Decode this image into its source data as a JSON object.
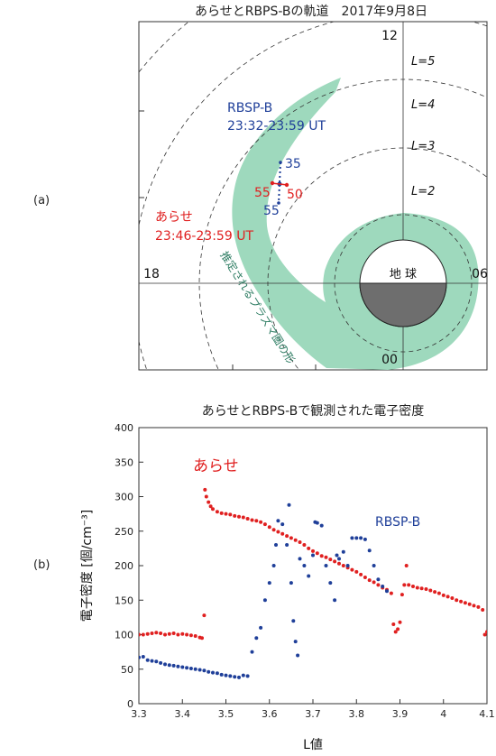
{
  "figure": {
    "panel_a_label": "(a)",
    "panel_b_label": "(b)"
  },
  "orbit": {
    "title": "あらせとRBPS-Bの軌道　2017年9月8日",
    "mlt_labels": {
      "top": "12",
      "left": "18",
      "right": "06",
      "bottom": "00"
    },
    "l_shell_labels": [
      "L=5",
      "L=4",
      "L=3",
      "L=2"
    ],
    "earth_label": "地 球",
    "plasmasphere_label": "推定されるプラズマ圏の形",
    "rbsp_label": "RBSP-B",
    "rbsp_time": "23:32-23:59 UT",
    "arase_label": "あらせ",
    "arase_time": "23:46-23:59 UT",
    "rbsp_marks": [
      "35",
      "55"
    ],
    "arase_marks": [
      "55",
      "50"
    ],
    "colors": {
      "plasmasphere": "#9ed9bd",
      "plasmasphere_text": "#2e7d63",
      "rbsp": "#1f3f99",
      "arase": "#e02020",
      "earth_night": "#6e6e6e"
    }
  },
  "chart_data": {
    "type": "scatter",
    "title": "あらせとRBPS-Bで観測された電子密度",
    "xlabel": "L値",
    "ylabel": "電子密度 [個/cm⁻³]",
    "xlim": [
      3.3,
      4.1
    ],
    "ylim": [
      0,
      400
    ],
    "x_ticks": [
      "3.3",
      "3.4",
      "3.5",
      "3.6",
      "3.7",
      "3.8",
      "3.9",
      "4",
      "4.1"
    ],
    "y_ticks": [
      "0",
      "50",
      "100",
      "150",
      "200",
      "250",
      "300",
      "350",
      "400"
    ],
    "grid": false,
    "series": [
      {
        "name": "あらせ",
        "color": "#e02020",
        "points": [
          [
            3.3,
            100
          ],
          [
            3.31,
            100
          ],
          [
            3.32,
            101
          ],
          [
            3.33,
            102
          ],
          [
            3.34,
            103
          ],
          [
            3.35,
            102
          ],
          [
            3.36,
            100
          ],
          [
            3.37,
            101
          ],
          [
            3.38,
            102
          ],
          [
            3.39,
            100
          ],
          [
            3.4,
            101
          ],
          [
            3.41,
            100
          ],
          [
            3.42,
            99
          ],
          [
            3.43,
            98
          ],
          [
            3.44,
            96
          ],
          [
            3.445,
            95
          ],
          [
            3.45,
            128
          ],
          [
            3.452,
            310
          ],
          [
            3.455,
            300
          ],
          [
            3.46,
            292
          ],
          [
            3.465,
            286
          ],
          [
            3.47,
            282
          ],
          [
            3.48,
            278
          ],
          [
            3.49,
            276
          ],
          [
            3.5,
            275
          ],
          [
            3.51,
            274
          ],
          [
            3.52,
            272
          ],
          [
            3.53,
            271
          ],
          [
            3.54,
            270
          ],
          [
            3.55,
            268
          ],
          [
            3.56,
            266
          ],
          [
            3.57,
            265
          ],
          [
            3.58,
            263
          ],
          [
            3.59,
            260
          ],
          [
            3.6,
            256
          ],
          [
            3.61,
            252
          ],
          [
            3.62,
            249
          ],
          [
            3.63,
            246
          ],
          [
            3.64,
            243
          ],
          [
            3.65,
            240
          ],
          [
            3.66,
            237
          ],
          [
            3.67,
            234
          ],
          [
            3.68,
            230
          ],
          [
            3.69,
            225
          ],
          [
            3.7,
            221
          ],
          [
            3.71,
            218
          ],
          [
            3.72,
            214
          ],
          [
            3.73,
            212
          ],
          [
            3.74,
            209
          ],
          [
            3.75,
            206
          ],
          [
            3.76,
            203
          ],
          [
            3.77,
            200
          ],
          [
            3.78,
            197
          ],
          [
            3.79,
            194
          ],
          [
            3.8,
            191
          ],
          [
            3.81,
            187
          ],
          [
            3.82,
            183
          ],
          [
            3.83,
            179
          ],
          [
            3.84,
            176
          ],
          [
            3.85,
            172
          ],
          [
            3.86,
            168
          ],
          [
            3.87,
            165
          ],
          [
            3.88,
            160
          ],
          [
            3.885,
            115
          ],
          [
            3.89,
            104
          ],
          [
            3.895,
            108
          ],
          [
            3.9,
            118
          ],
          [
            3.905,
            158
          ],
          [
            3.91,
            172
          ],
          [
            3.915,
            200
          ],
          [
            3.92,
            172
          ],
          [
            3.93,
            170
          ],
          [
            3.94,
            168
          ],
          [
            3.95,
            167
          ],
          [
            3.96,
            166
          ],
          [
            3.97,
            164
          ],
          [
            3.98,
            162
          ],
          [
            3.99,
            160
          ],
          [
            4.0,
            157
          ],
          [
            4.01,
            155
          ],
          [
            4.02,
            153
          ],
          [
            4.03,
            150
          ],
          [
            4.04,
            148
          ],
          [
            4.05,
            146
          ],
          [
            4.06,
            144
          ],
          [
            4.07,
            142
          ],
          [
            4.08,
            140
          ],
          [
            4.09,
            136
          ],
          [
            4.095,
            100
          ],
          [
            4.1,
            104
          ]
        ]
      },
      {
        "name": "RBSP-B",
        "color": "#1f3f99",
        "points": [
          [
            3.3,
            67
          ],
          [
            3.31,
            68
          ],
          [
            3.32,
            63
          ],
          [
            3.33,
            62
          ],
          [
            3.34,
            61
          ],
          [
            3.35,
            59
          ],
          [
            3.36,
            57
          ],
          [
            3.37,
            56
          ],
          [
            3.38,
            55
          ],
          [
            3.39,
            54
          ],
          [
            3.4,
            53
          ],
          [
            3.41,
            52
          ],
          [
            3.42,
            51
          ],
          [
            3.43,
            50
          ],
          [
            3.44,
            49
          ],
          [
            3.45,
            48
          ],
          [
            3.46,
            46
          ],
          [
            3.47,
            45
          ],
          [
            3.48,
            44
          ],
          [
            3.49,
            42
          ],
          [
            3.5,
            41
          ],
          [
            3.51,
            40
          ],
          [
            3.52,
            39
          ],
          [
            3.53,
            38
          ],
          [
            3.54,
            41
          ],
          [
            3.55,
            40
          ],
          [
            3.56,
            75
          ],
          [
            3.57,
            95
          ],
          [
            3.58,
            110
          ],
          [
            3.59,
            150
          ],
          [
            3.6,
            175
          ],
          [
            3.61,
            200
          ],
          [
            3.615,
            230
          ],
          [
            3.62,
            265
          ],
          [
            3.63,
            260
          ],
          [
            3.64,
            230
          ],
          [
            3.645,
            288
          ],
          [
            3.65,
            175
          ],
          [
            3.655,
            120
          ],
          [
            3.66,
            90
          ],
          [
            3.665,
            70
          ],
          [
            3.67,
            210
          ],
          [
            3.68,
            200
          ],
          [
            3.69,
            185
          ],
          [
            3.7,
            215
          ],
          [
            3.705,
            263
          ],
          [
            3.71,
            262
          ],
          [
            3.72,
            258
          ],
          [
            3.73,
            200
          ],
          [
            3.74,
            175
          ],
          [
            3.75,
            150
          ],
          [
            3.755,
            215
          ],
          [
            3.76,
            210
          ],
          [
            3.77,
            220
          ],
          [
            3.78,
            200
          ],
          [
            3.79,
            240
          ],
          [
            3.8,
            240
          ],
          [
            3.81,
            240
          ],
          [
            3.82,
            238
          ],
          [
            3.83,
            222
          ],
          [
            3.84,
            200
          ],
          [
            3.85,
            180
          ],
          [
            3.86,
            170
          ],
          [
            3.87,
            163
          ]
        ]
      }
    ]
  }
}
